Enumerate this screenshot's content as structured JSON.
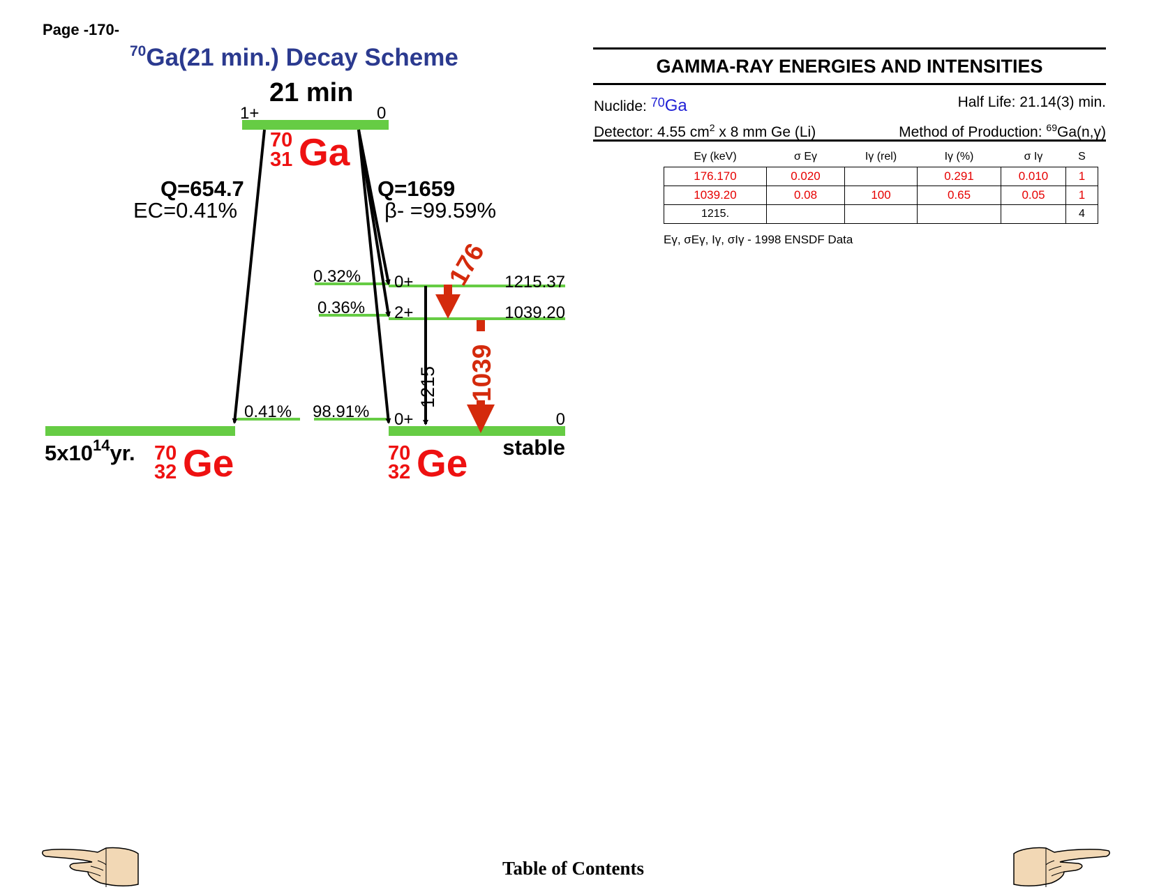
{
  "page": {
    "label": "Page -170-"
  },
  "scheme": {
    "title_mass": "70",
    "title_rest": "Ga(21 min.) Decay Scheme",
    "half_life": "21 min",
    "parent": {
      "spin": "1+",
      "energy": "0",
      "A": "70",
      "Z": "31",
      "symbol": "Ga"
    },
    "ec_branch": {
      "q": "Q=654.7",
      "label": "EC=0.41%"
    },
    "beta_branch": {
      "q": "Q=1659",
      "label": "β- =99.59%"
    },
    "levels": [
      {
        "spin": "0+",
        "energy": "1215.37",
        "feed": "0.32%"
      },
      {
        "spin": "2+",
        "energy": "1039.20",
        "feed": "0.36%"
      },
      {
        "spin": "0+",
        "energy": "0",
        "feed": "98.91%"
      }
    ],
    "ec_ground_feed": "0.41%",
    "gammas": {
      "g176": "176",
      "g1039": "1039",
      "g1215": "1215"
    },
    "daughter_ec": {
      "half_life_base": "5x10",
      "half_life_exp": "14",
      "half_life_unit": "yr.",
      "A": "70",
      "Z": "32",
      "symbol": "Ge"
    },
    "daughter_beta": {
      "A": "70",
      "Z": "32",
      "symbol": "Ge",
      "stability": "stable"
    },
    "colors": {
      "level": "#66cc44",
      "title": "#2b3a8f",
      "nuclide": "#ee1111",
      "gamma": "#d42a0c"
    }
  },
  "gamma_panel": {
    "header": "GAMMA-RAY ENERGIES AND INTENSITIES",
    "nuclide_label": "Nuclide: ",
    "nuclide_mass": "70",
    "nuclide_symbol": "Ga",
    "half_life": "Half Life: 21.14(3) min.",
    "detector_prefix": "Detector: 4.55 cm",
    "detector_sup": "2",
    "detector_suffix": " x 8 mm Ge (Li)",
    "production_prefix": "Method of Production: ",
    "production_sup": "69",
    "production_suffix": "Ga(n,γ)",
    "columns": [
      "Eγ (keV)",
      "σ Eγ",
      "Iγ (rel)",
      "Iγ (%)",
      "σ Iγ",
      "S"
    ],
    "rows": [
      [
        "176.170",
        "0.020",
        "",
        "0.291",
        "0.010",
        "1"
      ],
      [
        "1039.20",
        "0.08",
        "100",
        "0.65",
        "0.05",
        "1"
      ],
      [
        "1215.",
        "",
        "",
        "",
        "",
        "4"
      ]
    ],
    "note": "Eγ, σEγ, Iγ, σIγ - 1998 ENSDF Data"
  },
  "footer": {
    "toc": "Table of Contents",
    "prev_icon": "pointing-hand-left-icon",
    "next_icon": "pointing-hand-right-icon"
  }
}
